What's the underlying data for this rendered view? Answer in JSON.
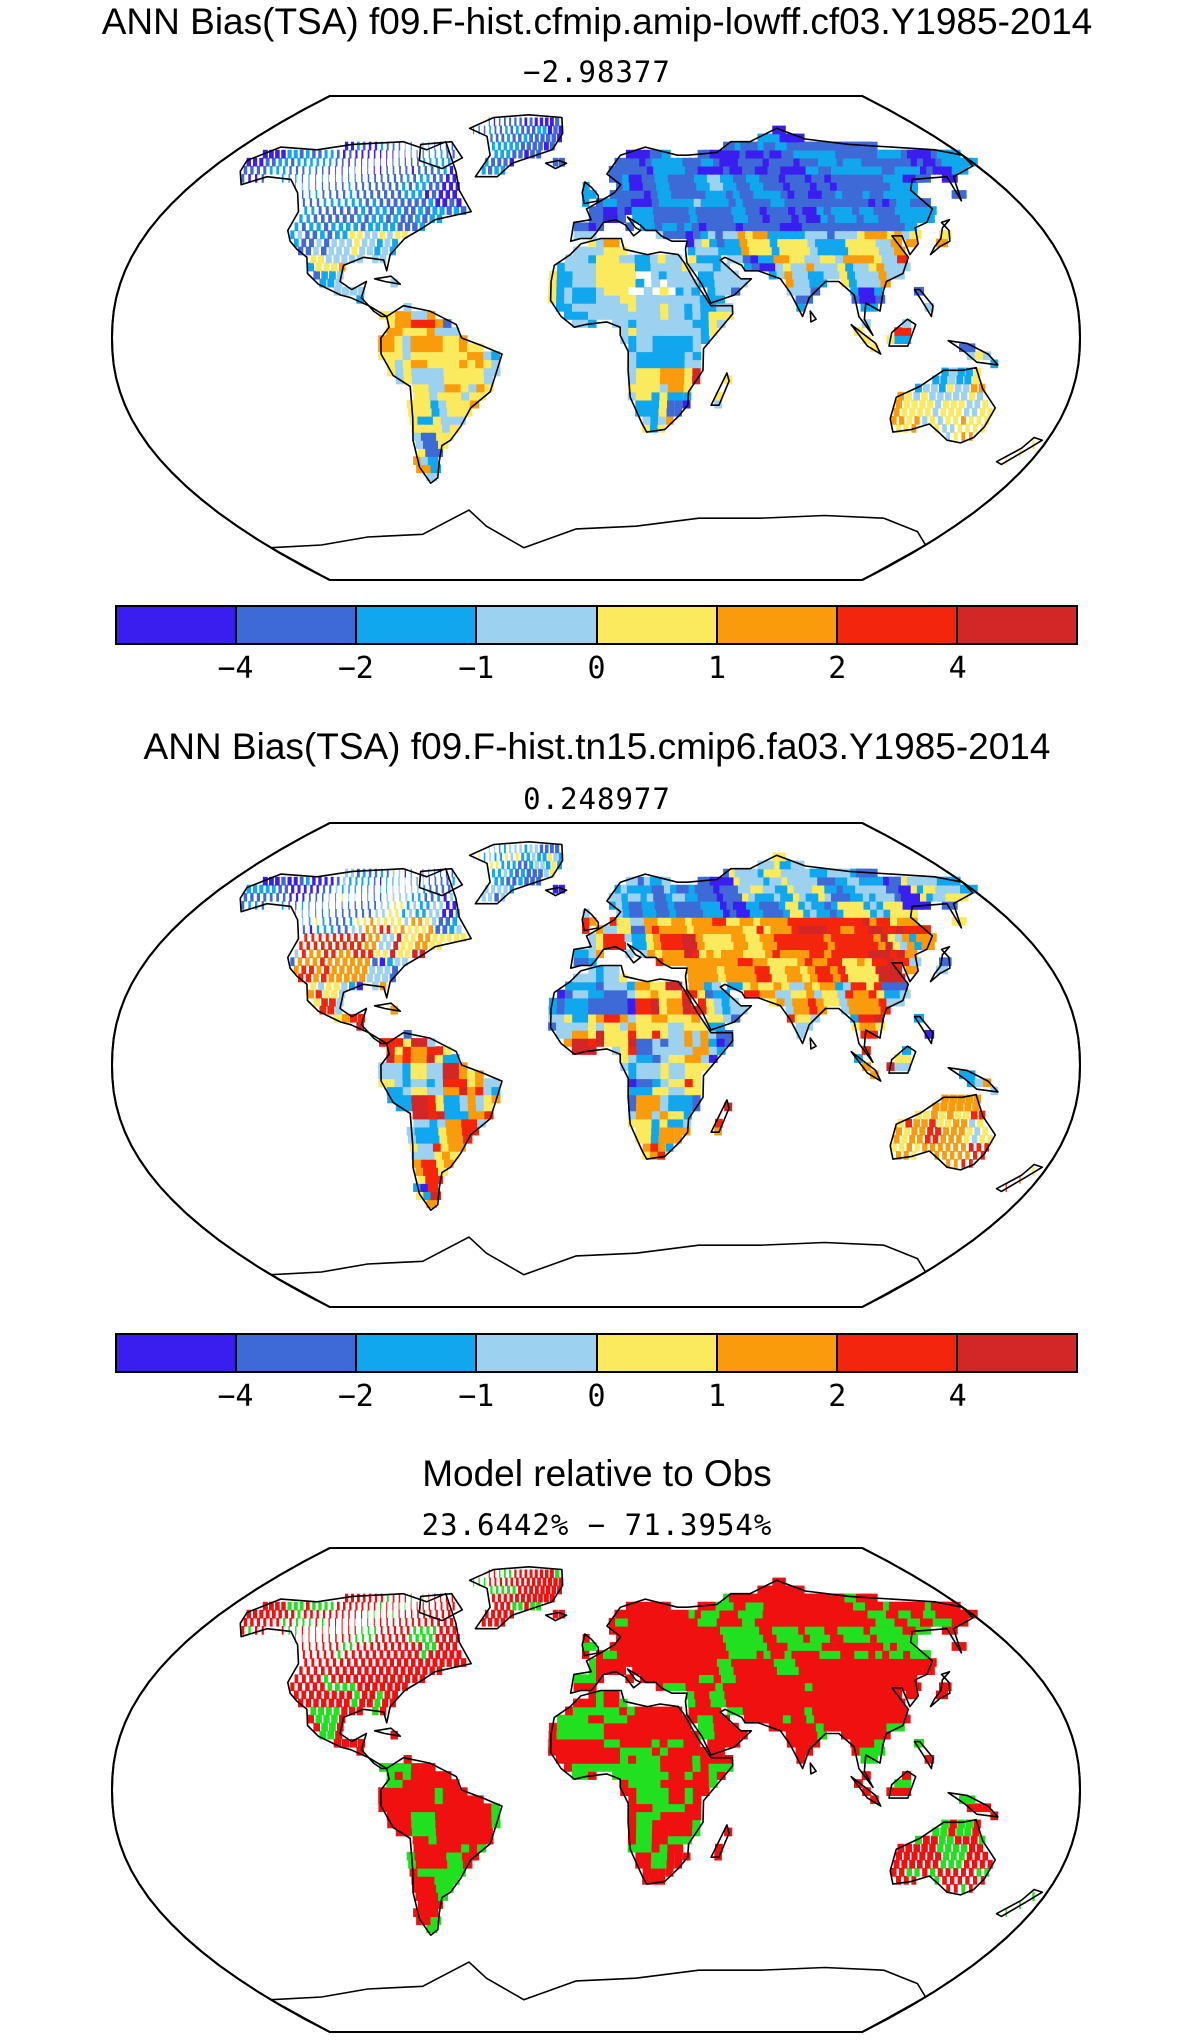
{
  "panels": [
    {
      "title": "ANN Bias(TSA) f09.F-hist.cfmip.amip-lowff.cf03.Y1985-2014",
      "subtitle": "−2.98377",
      "scheme": "cold"
    },
    {
      "title": "ANN Bias(TSA) f09.F-hist.tn15.cmip6.fa03.Y1985-2014",
      "subtitle": "0.248977",
      "scheme": "mixed"
    },
    {
      "title": "Model relative to Obs",
      "subtitle": "23.6442% − 71.3954%",
      "scheme": "redgreen"
    }
  ],
  "colorbar": {
    "colors": [
      "#3a1ef0",
      "#3e6ad8",
      "#10a7ee",
      "#9dd1f0",
      "#fbea5e",
      "#f99b0a",
      "#f4250d",
      "#d32727"
    ],
    "labels": [
      "−4",
      "−2",
      "−1",
      "0",
      "1",
      "2",
      "4"
    ]
  },
  "relative_colors": {
    "model_closer": "#f01010",
    "other": "#20e020"
  }
}
